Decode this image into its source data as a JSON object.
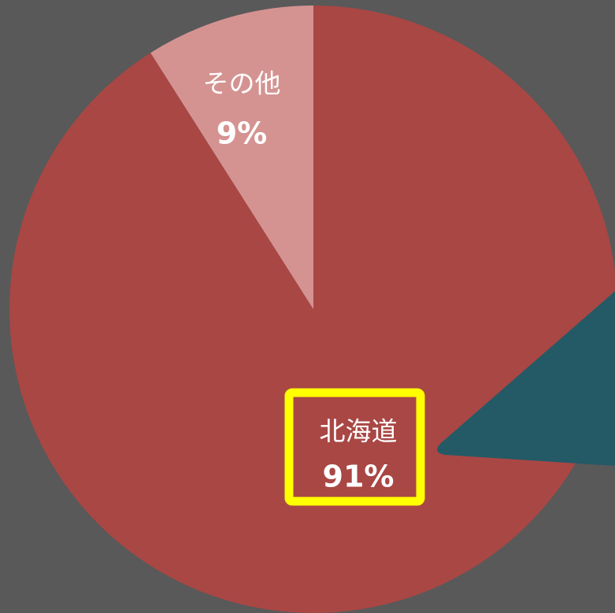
{
  "chart_data": {
    "type": "pie",
    "categories": [
      "北海道",
      "その他"
    ],
    "values": [
      91,
      9
    ],
    "value_labels": [
      "91%",
      "9%"
    ],
    "colors": [
      "#a94744",
      "#d49391"
    ]
  }
}
